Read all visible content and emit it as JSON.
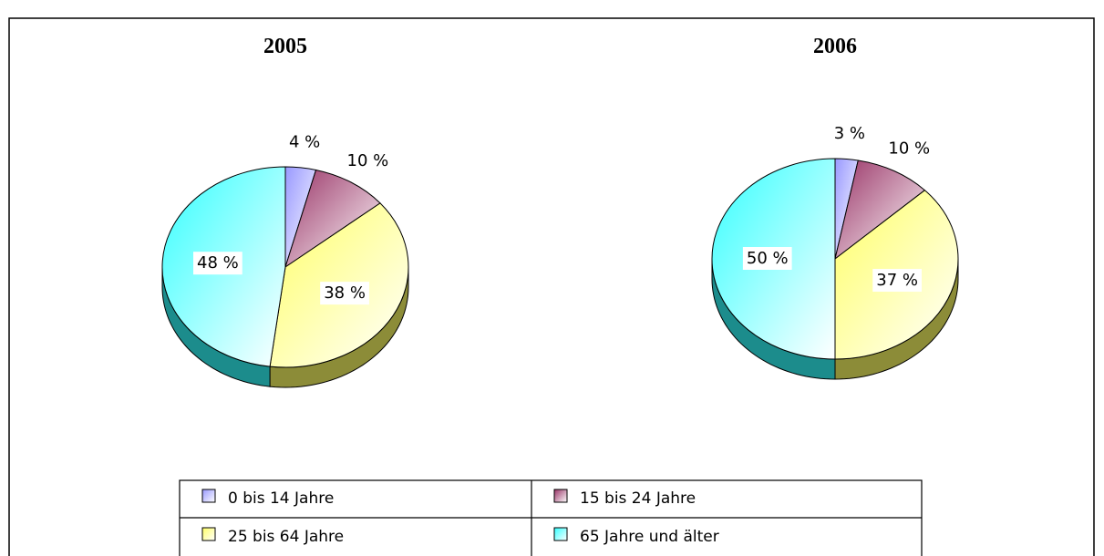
{
  "chart_data": [
    {
      "type": "pie",
      "title": "2005",
      "categories": [
        "0 bis 14 Jahre",
        "15 bis 24 Jahre",
        "25 bis 64 Jahre",
        "65 Jahre und älter"
      ],
      "values": [
        4,
        10,
        38,
        48
      ],
      "value_labels": [
        "4 %",
        "10 %",
        "38 %",
        "48 %"
      ],
      "colors": [
        "#9999ff",
        "#993366",
        "#ffff66",
        "#33ffff"
      ]
    },
    {
      "type": "pie",
      "title": "2006",
      "categories": [
        "0 bis 14 Jahre",
        "15 bis 24 Jahre",
        "25 bis 64 Jahre",
        "65 Jahre und älter"
      ],
      "values": [
        3,
        10,
        37,
        50
      ],
      "value_labels": [
        "3 %",
        "10 %",
        "37 %",
        "50 %"
      ],
      "colors": [
        "#9999ff",
        "#993366",
        "#ffff66",
        "#33ffff"
      ]
    }
  ]
}
